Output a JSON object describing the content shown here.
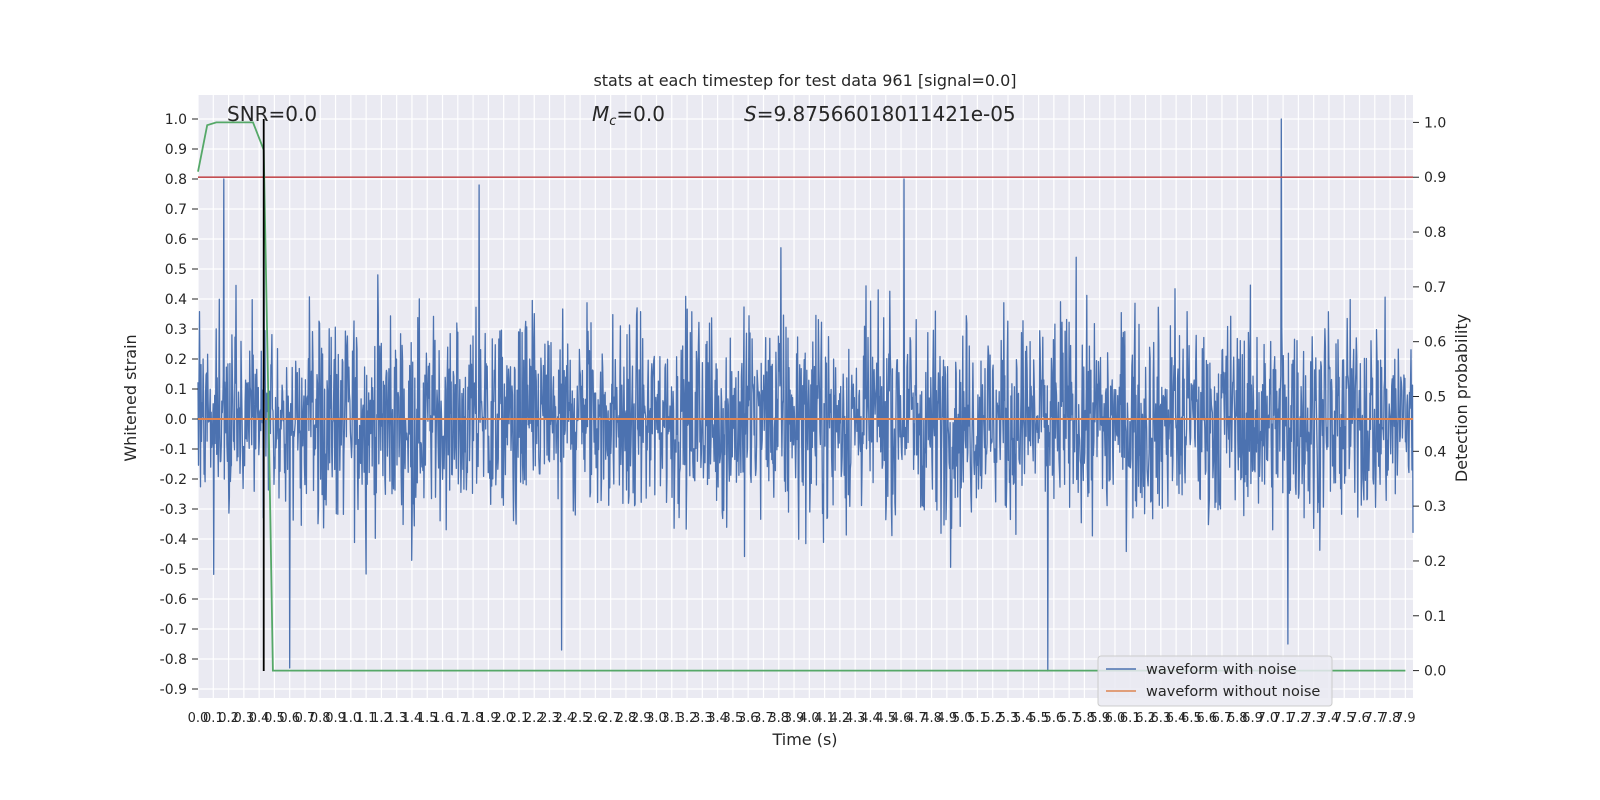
{
  "chart_data": {
    "type": "line",
    "title": "stats at each timestep for test data 961 [signal=0.0]",
    "xlabel": "Time (s)",
    "ylabel_left": "Whitened strain",
    "ylabel_right": "Detection probability",
    "xlim": [
      0.0,
      7.95
    ],
    "ylim_left": [
      -0.93,
      1.08
    ],
    "ylim_right": [
      -0.05,
      1.05
    ],
    "x_ticks": [
      0.0,
      0.1,
      0.2,
      0.3,
      0.4,
      0.5,
      0.6,
      0.7,
      0.8,
      0.9,
      1.0,
      1.1,
      1.2,
      1.3,
      1.4,
      1.5,
      1.6,
      1.7,
      1.8,
      1.9,
      2.0,
      2.1,
      2.2,
      2.3,
      2.4,
      2.5,
      2.6,
      2.7,
      2.8,
      2.9,
      3.0,
      3.1,
      3.2,
      3.3,
      3.4,
      3.5,
      3.6,
      3.7,
      3.8,
      3.9,
      4.0,
      4.1,
      4.2,
      4.3,
      4.4,
      4.5,
      4.6,
      4.7,
      4.8,
      4.9,
      5.0,
      5.1,
      5.2,
      5.3,
      5.4,
      5.5,
      5.6,
      5.7,
      5.8,
      5.9,
      6.0,
      6.1,
      6.2,
      6.3,
      6.4,
      6.5,
      6.6,
      6.7,
      6.8,
      6.9,
      7.0,
      7.1,
      7.2,
      7.3,
      7.4,
      7.5,
      7.6,
      7.7,
      7.8,
      7.9
    ],
    "y_ticks_left": [
      -0.9,
      -0.8,
      -0.7,
      -0.6,
      -0.5,
      -0.4,
      -0.3,
      -0.2,
      -0.1,
      0.0,
      0.1,
      0.2,
      0.3,
      0.4,
      0.5,
      0.6,
      0.7,
      0.8,
      0.9,
      1.0
    ],
    "y_ticks_right": [
      0.0,
      0.1,
      0.2,
      0.3,
      0.4,
      0.5,
      0.6,
      0.7,
      0.8,
      0.9,
      1.0
    ],
    "grid": true,
    "legend_position": "lower-right",
    "series": [
      {
        "name": "waveform with noise",
        "axis": "left",
        "color": "#4c72b0",
        "description_values": "dense noise, typical envelope about [-0.45, 0.45], extremes listed as peaks",
        "envelope": [
          -0.45,
          0.45
        ],
        "peaks": [
          {
            "x": 0.17,
            "y": 0.8
          },
          {
            "x": 0.43,
            "y": 0.76
          },
          {
            "x": 0.6,
            "y": -0.83
          },
          {
            "x": 1.84,
            "y": 0.78
          },
          {
            "x": 2.38,
            "y": -0.77
          },
          {
            "x": 4.62,
            "y": 0.8
          },
          {
            "x": 5.56,
            "y": -0.84
          },
          {
            "x": 7.09,
            "y": 1.0
          },
          {
            "x": 7.13,
            "y": -0.75
          }
        ]
      },
      {
        "name": "waveform without noise",
        "axis": "left",
        "color": "#dd8452",
        "x": [
          0.0,
          7.95
        ],
        "y": [
          0.0,
          0.0
        ]
      },
      {
        "name": "",
        "axis": "right",
        "color": "#55a868",
        "x": [
          0.0,
          0.06,
          0.12,
          0.2,
          0.3,
          0.36,
          0.43,
          0.46,
          0.49,
          0.55,
          7.9
        ],
        "y": [
          0.91,
          0.995,
          1.0,
          1.0,
          1.0,
          1.0,
          0.95,
          0.5,
          0.0,
          0.0,
          0.0
        ]
      }
    ],
    "threshold_line": {
      "axis": "right",
      "y": 0.9,
      "color": "#c44e52"
    },
    "marker_line": {
      "x": 0.43,
      "color": "#000000",
      "y_range": [
        -0.84,
        1.0
      ]
    },
    "annotations": {
      "snr": "SNR=0.0",
      "mc_symbol": "M",
      "mc_sub": "c",
      "mc_value": "=0.0",
      "s_symbol": "S",
      "s_value": "=9.87566018011421e-05"
    }
  }
}
